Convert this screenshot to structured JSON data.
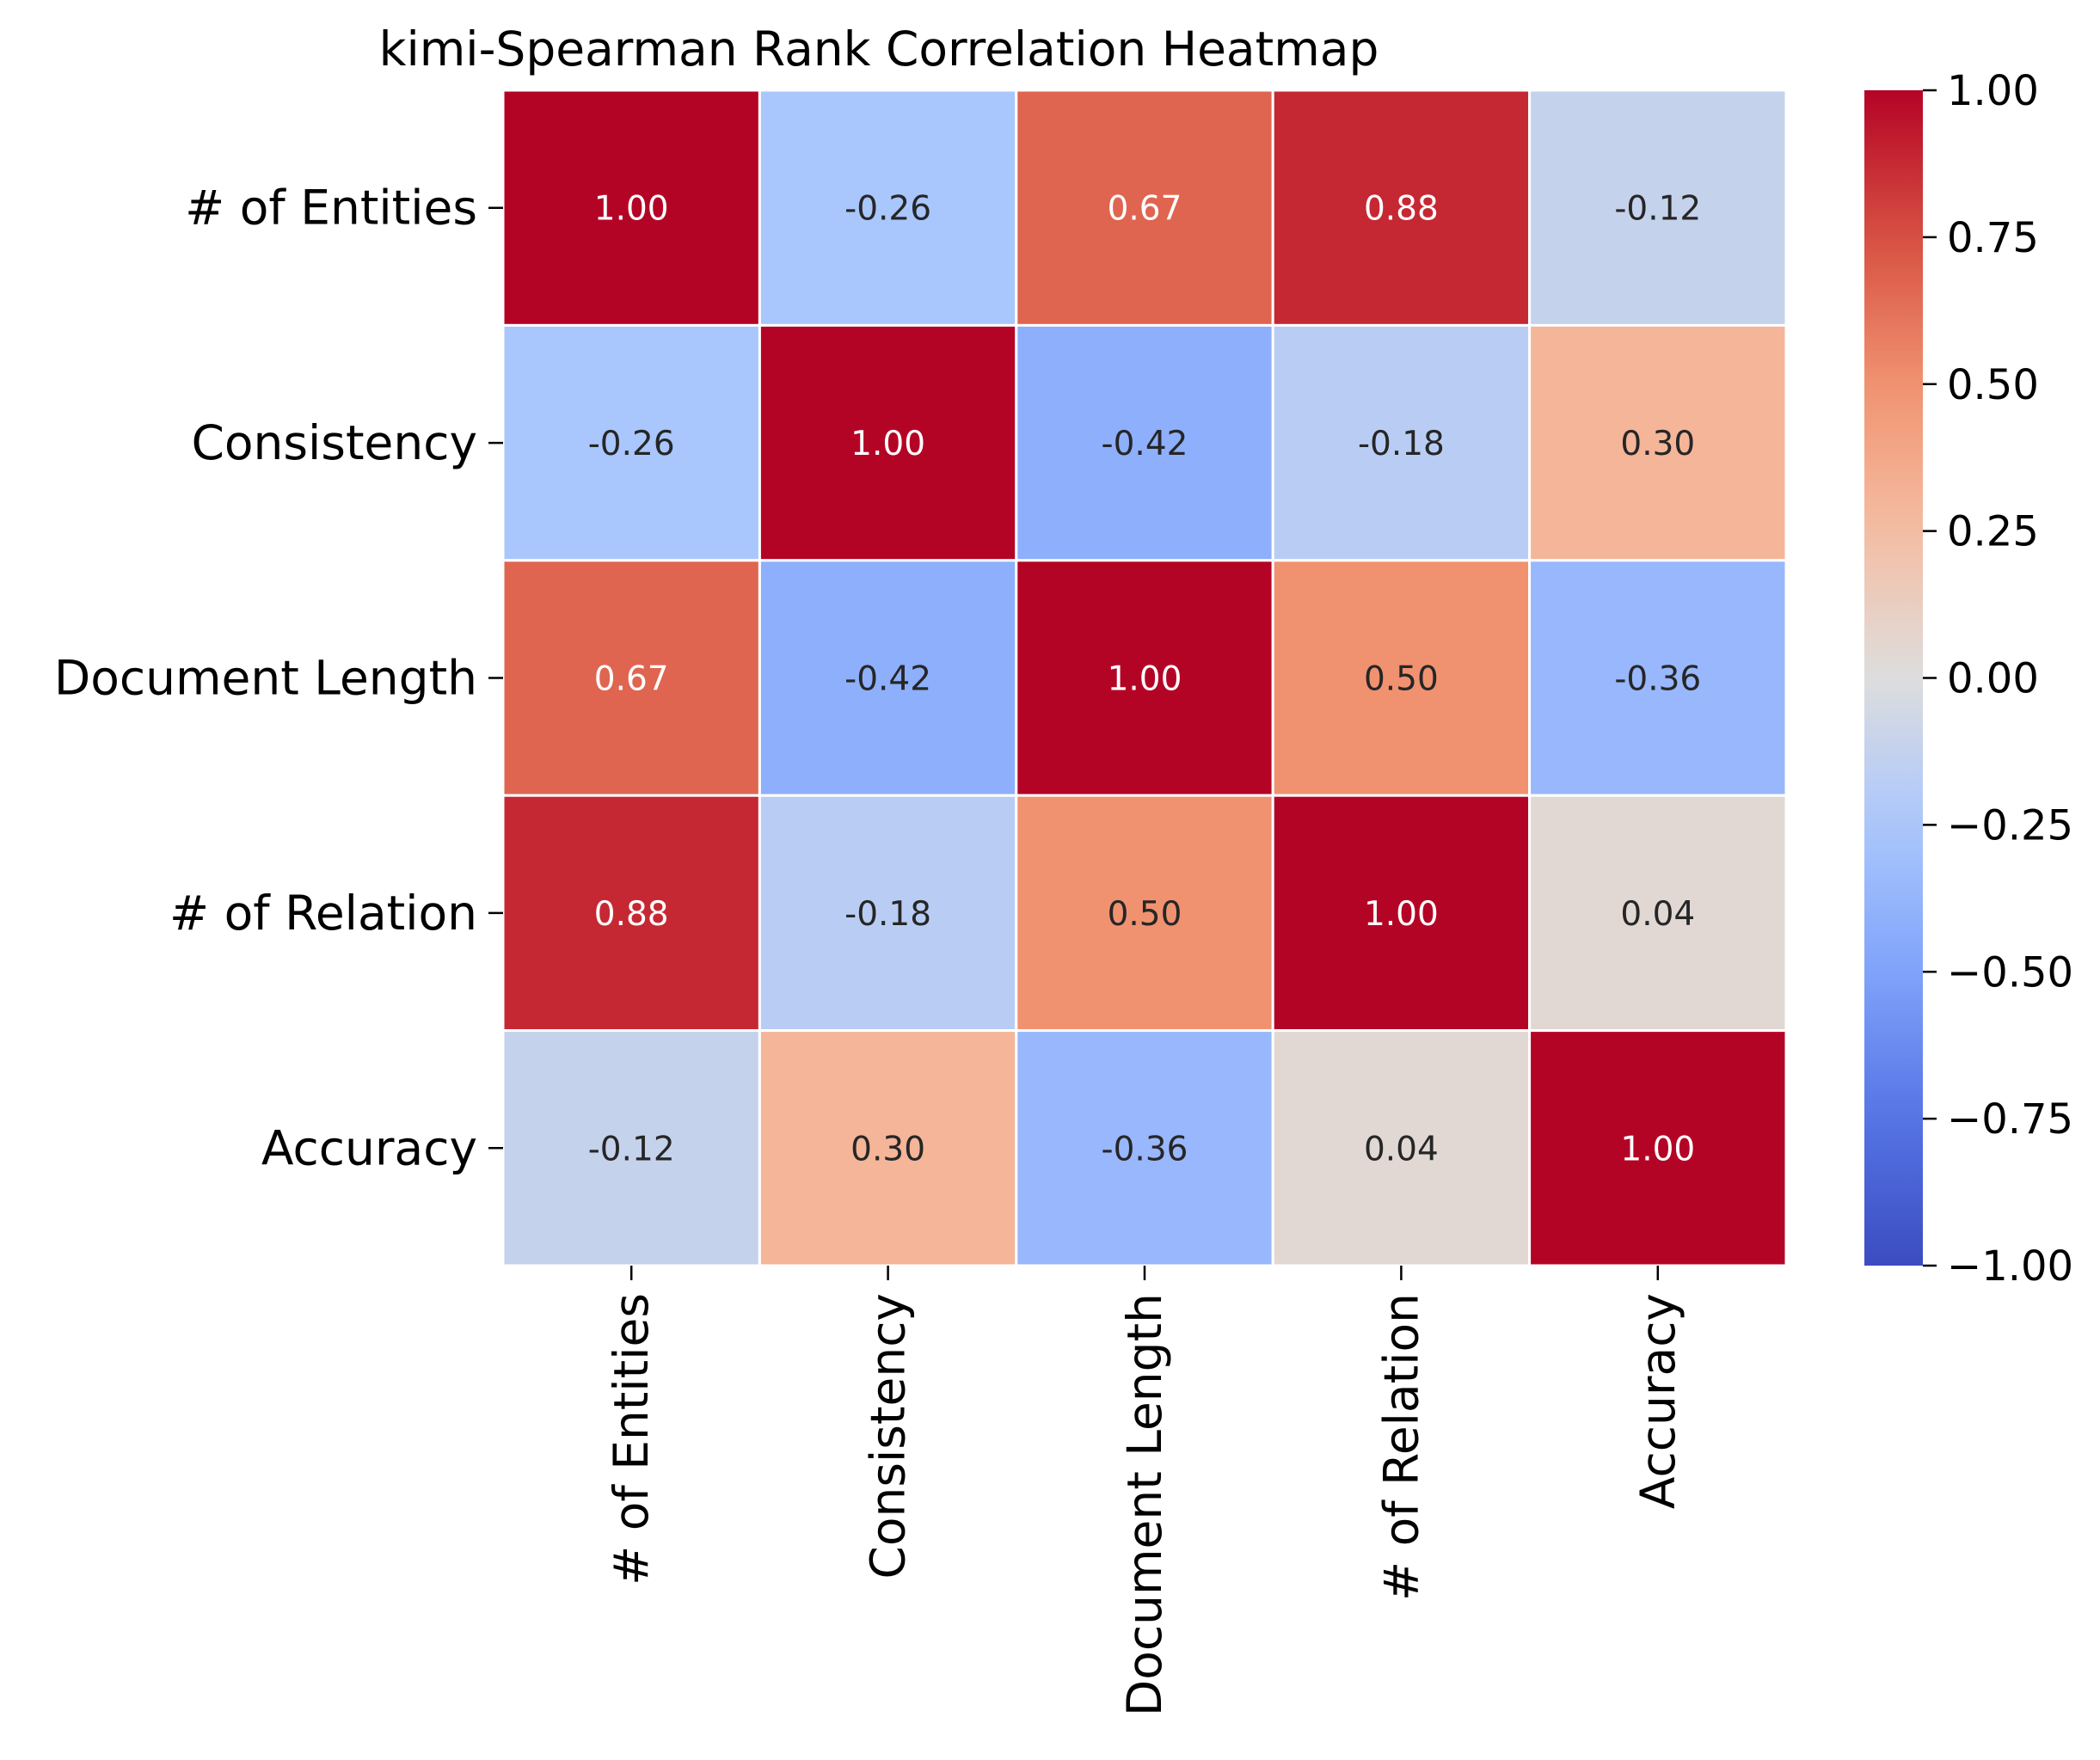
{
  "chart_data": {
    "type": "heatmap",
    "title": "kimi-Spearman Rank Correlation Heatmap",
    "row_labels": [
      "# of Entities",
      "Consistency",
      "Document Length",
      "# of Relation",
      "Accuracy"
    ],
    "col_labels": [
      "# of Entities",
      "Consistency",
      "Document Length",
      "# of Relation",
      "Accuracy"
    ],
    "values": [
      [
        1.0,
        -0.26,
        0.67,
        0.88,
        -0.12
      ],
      [
        -0.26,
        1.0,
        -0.42,
        -0.18,
        0.3
      ],
      [
        0.67,
        -0.42,
        1.0,
        0.5,
        -0.36
      ],
      [
        0.88,
        -0.18,
        0.5,
        1.0,
        0.04
      ],
      [
        -0.12,
        0.3,
        -0.36,
        0.04,
        1.0
      ]
    ],
    "value_labels": [
      [
        "1.00",
        "-0.26",
        "0.67",
        "0.88",
        "-0.12"
      ],
      [
        "-0.26",
        "1.00",
        "-0.42",
        "-0.18",
        "0.30"
      ],
      [
        "0.67",
        "-0.42",
        "1.00",
        "0.50",
        "-0.36"
      ],
      [
        "0.88",
        "-0.18",
        "0.50",
        "1.00",
        "0.04"
      ],
      [
        "-0.12",
        "0.30",
        "-0.36",
        "0.04",
        "1.00"
      ]
    ],
    "colormap": "coolwarm",
    "vmin": -1.0,
    "vmax": 1.0,
    "colorbar_ticks": [
      1.0,
      0.75,
      0.5,
      0.25,
      0.0,
      -0.25,
      -0.5,
      -0.75,
      -1.0
    ],
    "colorbar_tick_labels": [
      "1.00",
      "0.75",
      "0.50",
      "0.25",
      "0.00",
      "−0.25",
      "−0.50",
      "−0.75",
      "−1.00"
    ],
    "grid_line_color": "#ffffff"
  }
}
